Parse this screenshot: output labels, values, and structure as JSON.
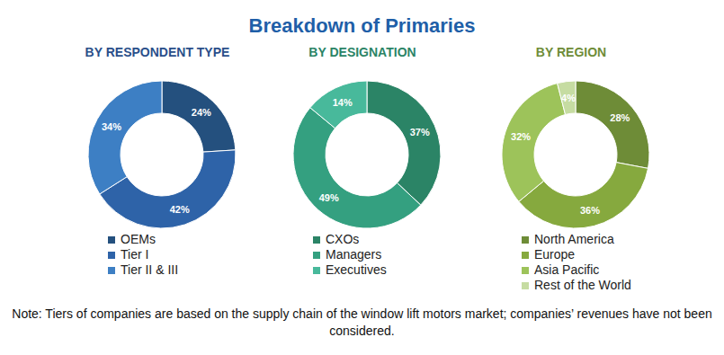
{
  "title": "Breakdown of Primaries",
  "note": "Note: Tiers of companies are based on the supply chain of the window lift motors market; companies’ revenues have not been considered.",
  "chart_data": [
    {
      "type": "pie",
      "title": "BY RESPONDENT TYPE",
      "categories": [
        "OEMs",
        "Tier I",
        "Tier II & III"
      ],
      "values": [
        24,
        42,
        34
      ],
      "value_labels": [
        "24%",
        "42%",
        "34%"
      ],
      "colors": [
        "#24507e",
        "#2e63a8",
        "#3d7fc4"
      ],
      "data_labels": true,
      "legend": "bottom"
    },
    {
      "type": "pie",
      "title": "BY DESIGNATION",
      "categories": [
        "CXOs",
        "Managers",
        "Executives"
      ],
      "values": [
        37,
        49,
        14
      ],
      "value_labels": [
        "37%",
        "49%",
        "14%"
      ],
      "colors": [
        "#2b8466",
        "#34a080",
        "#48b99b"
      ],
      "data_labels": true,
      "legend": "bottom"
    },
    {
      "type": "pie",
      "title": "BY REGION",
      "categories": [
        "North America",
        "Europe",
        "Asia Pacific",
        "Rest of the World"
      ],
      "values": [
        28,
        36,
        32,
        4
      ],
      "value_labels": [
        "28%",
        "36%",
        "32%",
        "4%"
      ],
      "colors": [
        "#6e8c37",
        "#86a93e",
        "#9dc35a",
        "#c6dca2"
      ],
      "data_labels": true,
      "legend": "bottom"
    }
  ]
}
